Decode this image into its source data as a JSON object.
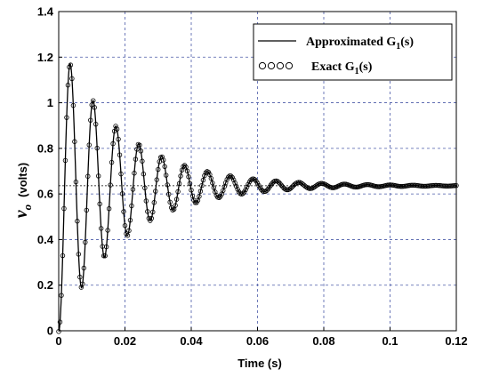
{
  "chart_data": {
    "type": "line",
    "xlabel": "Time (s)",
    "ylabel_main": "v",
    "ylabel_sub": "o",
    "ylabel_unit": "(volts)",
    "xlim": [
      0,
      0.12
    ],
    "ylim": [
      0,
      1.4
    ],
    "xticks": [
      "0",
      "0.02",
      "0.04",
      "0.06",
      "0.08",
      "0.1",
      "0.12"
    ],
    "yticks": [
      "0",
      "0.2",
      "0.4",
      "0.6",
      "0.8",
      "1",
      "1.2",
      "1.4"
    ],
    "grid": true,
    "legend_position": "top-right",
    "response_model": {
      "final_value": 0.636,
      "first_peak": 1.17,
      "first_peak_time": 0.0035,
      "period": 0.0069,
      "decay_time_constant": 0.0193,
      "t_end": 0.12
    },
    "reference_line_y": 0.636,
    "series": [
      {
        "name": "Approximated G",
        "subscript": "1",
        "suffix": "(s)",
        "style": "solid-line",
        "color": "#000000"
      },
      {
        "name": "Exact G",
        "subscript": "1",
        "suffix": "(s)",
        "style": "open-circle-markers",
        "color": "#000000"
      }
    ]
  }
}
